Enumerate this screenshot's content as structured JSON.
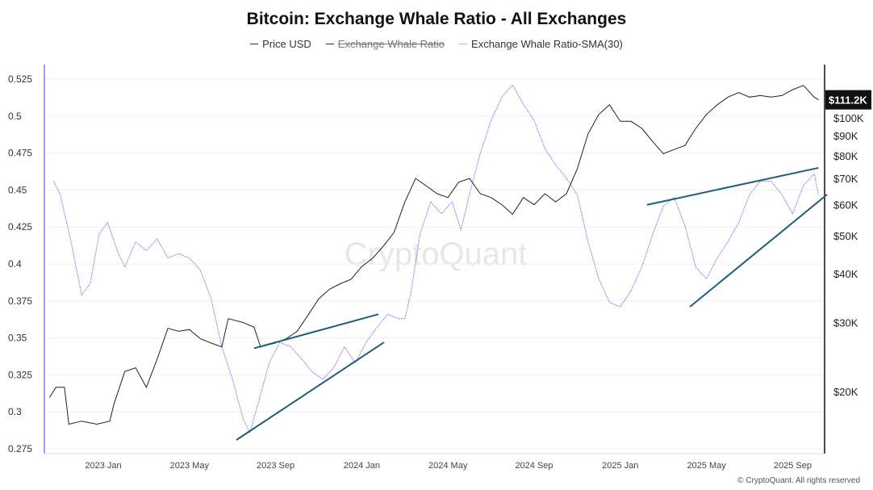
{
  "chart_data": {
    "type": "line",
    "title": "Bitcoin: Exchange Whale Ratio - All Exchanges",
    "legend": [
      {
        "label": "Price USD",
        "color": "#222222",
        "hidden": false
      },
      {
        "label": "Exchange Whale Ratio",
        "color": "#222222",
        "hidden": true
      },
      {
        "label": "Exchange Whale Ratio-SMA(30)",
        "color": "#8a7ff0",
        "hidden": false
      }
    ],
    "legend_placement": "top-center",
    "x_ticks": [
      "2023 Jan",
      "2023 May",
      "2023 Sep",
      "2024 Jan",
      "2024 May",
      "2024 Sep",
      "2025 Jan",
      "2025 May",
      "2025 Sep"
    ],
    "x_unit": "months since 2023-01-01",
    "left_axis": {
      "ticks": [
        "0.525",
        "0.5",
        "0.475",
        "0.45",
        "0.425",
        "0.4",
        "0.375",
        "0.35",
        "0.325",
        "0.3",
        "0.275"
      ],
      "range": [
        0.275,
        0.525
      ]
    },
    "right_axis": {
      "scale": "log",
      "ticks": [
        {
          "label": "$100K",
          "v": 100000
        },
        {
          "label": "$90K",
          "v": 90000
        },
        {
          "label": "$80K",
          "v": 80000
        },
        {
          "label": "$70K",
          "v": 70000
        },
        {
          "label": "$60K",
          "v": 60000
        },
        {
          "label": "$50K",
          "v": 50000
        },
        {
          "label": "$40K",
          "v": 40000
        },
        {
          "label": "$30K",
          "v": 30000
        },
        {
          "label": "$20K",
          "v": 20000
        }
      ],
      "current_label": "$111.2K"
    },
    "price_series": {
      "name": "Price USD",
      "points": [
        [
          -2.5,
          19300
        ],
        [
          -2.2,
          20500
        ],
        [
          -1.8,
          20500
        ],
        [
          -1.6,
          16500
        ],
        [
          -1,
          16800
        ],
        [
          -0.3,
          16500
        ],
        [
          0.3,
          16800
        ],
        [
          0.5,
          18600
        ],
        [
          1,
          22500
        ],
        [
          1.5,
          23000
        ],
        [
          2,
          20500
        ],
        [
          2.5,
          24200
        ],
        [
          3,
          29000
        ],
        [
          3.5,
          28500
        ],
        [
          4,
          28800
        ],
        [
          4.5,
          27300
        ],
        [
          5,
          26600
        ],
        [
          5.5,
          26000
        ],
        [
          5.8,
          30700
        ],
        [
          6.5,
          30000
        ],
        [
          7,
          29200
        ],
        [
          7.3,
          26000
        ],
        [
          8,
          26600
        ],
        [
          8.5,
          27300
        ],
        [
          9,
          28500
        ],
        [
          9.5,
          31300
        ],
        [
          10,
          34500
        ],
        [
          10.5,
          36500
        ],
        [
          11,
          37700
        ],
        [
          11.5,
          38700
        ],
        [
          12,
          41700
        ],
        [
          12.5,
          43800
        ],
        [
          13,
          47000
        ],
        [
          13.5,
          51000
        ],
        [
          14,
          61000
        ],
        [
          14.5,
          70000
        ],
        [
          15,
          67000
        ],
        [
          15.5,
          64000
        ],
        [
          16,
          62600
        ],
        [
          16.5,
          68500
        ],
        [
          17,
          70000
        ],
        [
          17.5,
          64000
        ],
        [
          18,
          62600
        ],
        [
          18.5,
          60000
        ],
        [
          19,
          56700
        ],
        [
          19.5,
          62600
        ],
        [
          20,
          60000
        ],
        [
          20.5,
          64000
        ],
        [
          21,
          61000
        ],
        [
          21.5,
          64000
        ],
        [
          22,
          74000
        ],
        [
          22.5,
          91000
        ],
        [
          23,
          102000
        ],
        [
          23.5,
          108000
        ],
        [
          24,
          98000
        ],
        [
          24.5,
          98000
        ],
        [
          25,
          94000
        ],
        [
          25.5,
          87000
        ],
        [
          26,
          81000
        ],
        [
          26.5,
          83000
        ],
        [
          27,
          85000
        ],
        [
          27.5,
          94000
        ],
        [
          28,
          102000
        ],
        [
          28.5,
          108000
        ],
        [
          29,
          113000
        ],
        [
          29.5,
          116000
        ],
        [
          30,
          113000
        ],
        [
          30.5,
          114000
        ],
        [
          31,
          113000
        ],
        [
          31.5,
          114000
        ],
        [
          32,
          118000
        ],
        [
          32.5,
          121000
        ],
        [
          33,
          113000
        ],
        [
          33.2,
          111200
        ]
      ]
    },
    "sma_series": {
      "name": "Exchange Whale Ratio-SMA(30)",
      "points": [
        [
          -2.3,
          0.456
        ],
        [
          -2,
          0.447
        ],
        [
          -1.5,
          0.415
        ],
        [
          -1,
          0.379
        ],
        [
          -0.6,
          0.387
        ],
        [
          -0.2,
          0.42
        ],
        [
          0.2,
          0.428
        ],
        [
          0.7,
          0.407
        ],
        [
          1,
          0.398
        ],
        [
          1.5,
          0.415
        ],
        [
          2,
          0.409
        ],
        [
          2.5,
          0.417
        ],
        [
          3,
          0.404
        ],
        [
          3.5,
          0.407
        ],
        [
          4,
          0.404
        ],
        [
          4.5,
          0.396
        ],
        [
          5,
          0.377
        ],
        [
          5.5,
          0.344
        ],
        [
          6,
          0.322
        ],
        [
          6.5,
          0.295
        ],
        [
          6.8,
          0.286
        ],
        [
          7.2,
          0.306
        ],
        [
          7.7,
          0.333
        ],
        [
          8.2,
          0.347
        ],
        [
          8.7,
          0.344
        ],
        [
          9.2,
          0.336
        ],
        [
          9.7,
          0.327
        ],
        [
          10.2,
          0.322
        ],
        [
          10.7,
          0.33
        ],
        [
          11.2,
          0.344
        ],
        [
          11.7,
          0.333
        ],
        [
          12.2,
          0.347
        ],
        [
          12.7,
          0.357
        ],
        [
          13.2,
          0.366
        ],
        [
          13.7,
          0.363
        ],
        [
          14,
          0.363
        ],
        [
          14.3,
          0.382
        ],
        [
          14.7,
          0.42
        ],
        [
          15.2,
          0.442
        ],
        [
          15.7,
          0.434
        ],
        [
          16.2,
          0.442
        ],
        [
          16.6,
          0.423
        ],
        [
          17,
          0.447
        ],
        [
          17.5,
          0.475
        ],
        [
          18,
          0.497
        ],
        [
          18.5,
          0.513
        ],
        [
          19,
          0.521
        ],
        [
          19.5,
          0.508
        ],
        [
          20,
          0.497
        ],
        [
          20.5,
          0.478
        ],
        [
          21,
          0.467
        ],
        [
          21.5,
          0.458
        ],
        [
          22,
          0.447
        ],
        [
          22.5,
          0.415
        ],
        [
          23,
          0.39
        ],
        [
          23.5,
          0.374
        ],
        [
          24,
          0.371
        ],
        [
          24.5,
          0.382
        ],
        [
          25,
          0.398
        ],
        [
          25.5,
          0.42
        ],
        [
          26,
          0.439
        ],
        [
          26.5,
          0.445
        ],
        [
          27,
          0.426
        ],
        [
          27.5,
          0.398
        ],
        [
          28,
          0.39
        ],
        [
          28.5,
          0.404
        ],
        [
          29,
          0.415
        ],
        [
          29.5,
          0.428
        ],
        [
          30,
          0.447
        ],
        [
          30.5,
          0.456
        ],
        [
          31,
          0.456
        ],
        [
          31.5,
          0.447
        ],
        [
          32,
          0.434
        ],
        [
          32.5,
          0.453
        ],
        [
          33,
          0.461
        ],
        [
          33.2,
          0.447
        ]
      ]
    },
    "trend_lines": [
      {
        "from": [
          7.0,
          0.343
        ],
        "to": [
          12.77,
          0.366
        ]
      },
      {
        "from": [
          6.18,
          0.281
        ],
        "to": [
          13.03,
          0.347
        ]
      },
      {
        "from": [
          25.24,
          0.44
        ],
        "to": [
          33.2,
          0.465
        ]
      },
      {
        "from": [
          27.23,
          0.371
        ],
        "to": [
          33.6,
          0.447
        ]
      }
    ],
    "watermark": "CryptoQuant"
  },
  "footer": {
    "copyright": "© CryptoQuant. All rights reserved"
  }
}
